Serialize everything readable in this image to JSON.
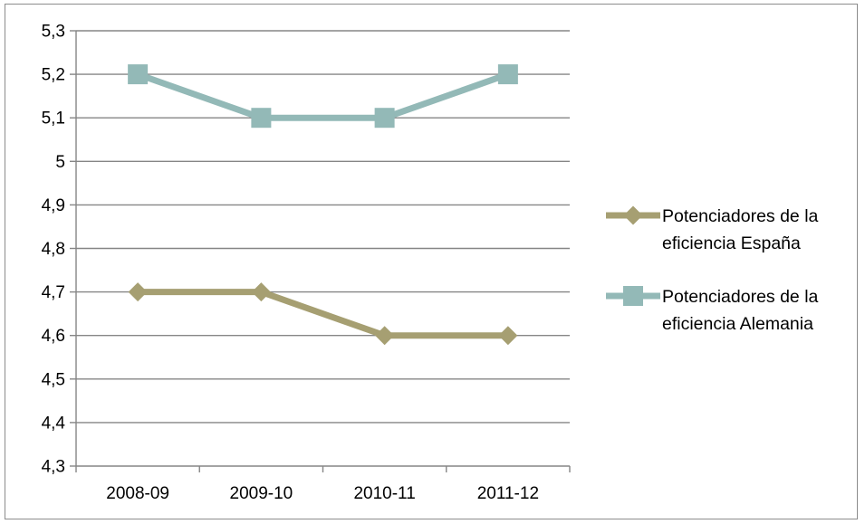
{
  "chart_data": {
    "type": "line",
    "title": "",
    "xlabel": "",
    "ylabel": "",
    "categories": [
      "2008-09",
      "2009-10",
      "2010-11",
      "2011-12"
    ],
    "ylim": [
      4.3,
      5.3
    ],
    "ytick_step": 0.1,
    "ytick_labels": [
      "4,3",
      "4,4",
      "4,5",
      "4,6",
      "4,7",
      "4,8",
      "4,9",
      "5",
      "5,1",
      "5,2",
      "5,3"
    ],
    "grid": true,
    "legend_position": "right",
    "series": [
      {
        "name": "Potenciadores de la eficiencia España",
        "legend_lines": [
          "Potenciadores de la",
          "eficiencia España"
        ],
        "values": [
          4.7,
          4.7,
          4.6,
          4.6
        ],
        "color": "#a69f72",
        "marker": "diamond"
      },
      {
        "name": "Potenciadores de la eficiencia Alemania",
        "legend_lines": [
          "Potenciadores de la",
          "eficiencia Alemania"
        ],
        "values": [
          5.2,
          5.1,
          5.1,
          5.2
        ],
        "color": "#93b9b7",
        "marker": "square"
      }
    ]
  }
}
